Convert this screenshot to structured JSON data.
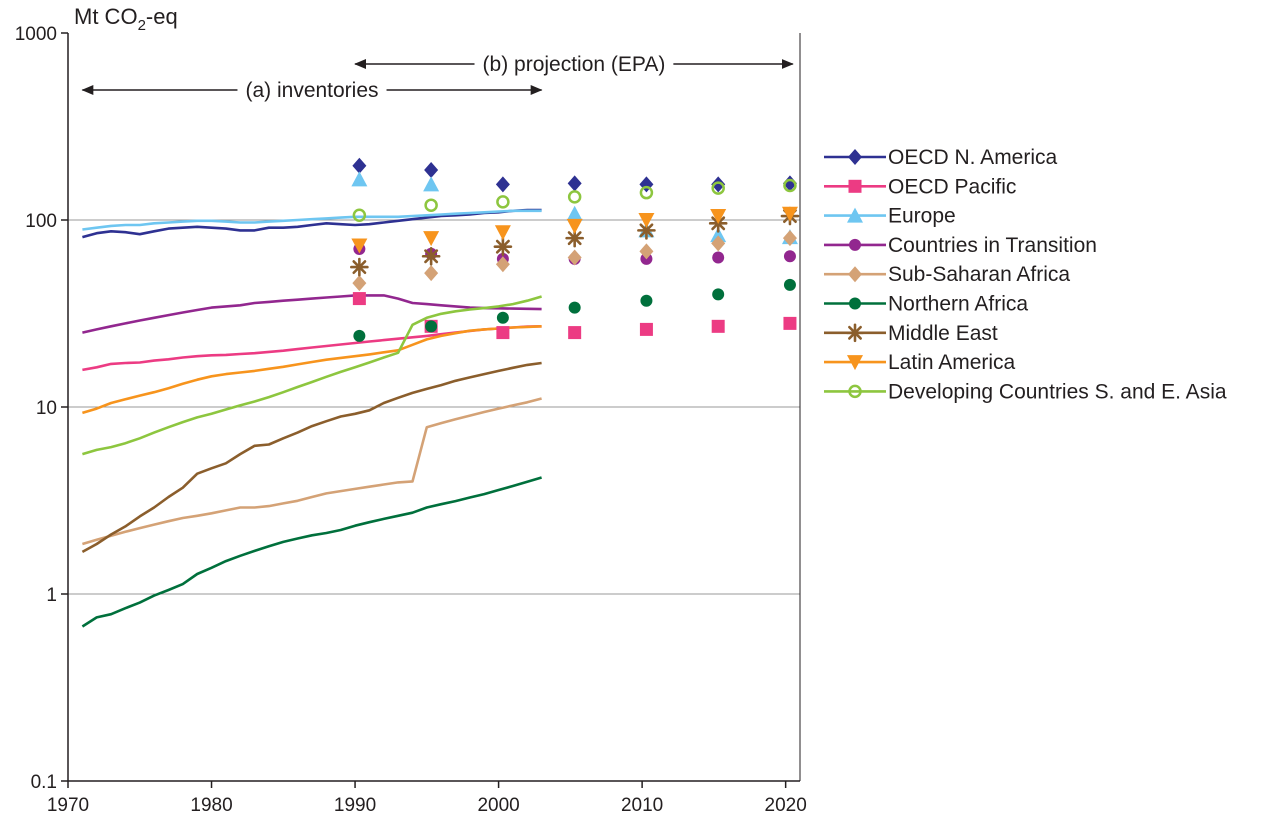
{
  "chart_data": {
    "type": "line",
    "ylabel": "Mt CO2-eq",
    "ylabel_parts": {
      "main": "Mt CO",
      "sub": "2",
      "suffix": "-eq"
    },
    "y_scale": "log",
    "xlim": [
      1970,
      2021
    ],
    "ylim": [
      0.1,
      1000
    ],
    "x_ticks": [
      1970,
      1980,
      1990,
      2000,
      2010,
      2020
    ],
    "y_ticks": [
      {
        "value": 0.1,
        "label": "0.1"
      },
      {
        "value": 1,
        "label": "1"
      },
      {
        "value": 10,
        "label": "10"
      },
      {
        "value": 100,
        "label": "100"
      },
      {
        "value": 1000,
        "label": "1000"
      }
    ],
    "grid": "horizontal",
    "legend_position": "right",
    "annotations": {
      "inventories": {
        "label": "(a) inventories",
        "x_from": 1971,
        "x_to": 2003
      },
      "projection": {
        "label": "(b) projection (EPA)",
        "x_from": 1990,
        "x_to": 2020.5
      }
    },
    "series": [
      {
        "name": "OECD N. America",
        "color": "#2e3192",
        "marker": "diamond",
        "inventory": {
          "x": [
            1971,
            1972,
            1973,
            1974,
            1975,
            1976,
            1977,
            1978,
            1979,
            1980,
            1981,
            1982,
            1983,
            1984,
            1985,
            1986,
            1987,
            1988,
            1989,
            1990,
            1991,
            1992,
            1993,
            1994,
            1995,
            1996,
            1997,
            1998,
            1999,
            2000,
            2001,
            2002,
            2003
          ],
          "y": [
            81,
            85,
            87,
            86,
            84,
            87,
            90,
            91,
            92,
            91,
            90,
            88,
            88,
            91,
            91,
            92,
            94,
            96,
            95,
            94,
            95,
            97,
            99,
            101,
            103,
            105,
            106,
            107,
            109,
            110,
            112,
            113,
            113
          ]
        },
        "projection": {
          "x": [
            1990,
            1995,
            2000,
            2005,
            2010,
            2015,
            2020
          ],
          "y": [
            195,
            185,
            155,
            157,
            155,
            155,
            157
          ]
        }
      },
      {
        "name": "OECD Pacific",
        "color": "#ec3b83",
        "marker": "square",
        "inventory": {
          "x": [
            1971,
            1972,
            1973,
            1974,
            1975,
            1976,
            1977,
            1978,
            1979,
            1980,
            1981,
            1982,
            1983,
            1984,
            1985,
            1986,
            1987,
            1988,
            1989,
            1990,
            1991,
            1992,
            1993,
            1994,
            1995,
            1996,
            1997,
            1998,
            1999,
            2000,
            2001,
            2002,
            2003
          ],
          "y": [
            15.8,
            16.3,
            17.0,
            17.2,
            17.3,
            17.7,
            18.0,
            18.4,
            18.7,
            18.9,
            19.0,
            19.2,
            19.4,
            19.7,
            20.0,
            20.4,
            20.8,
            21.2,
            21.6,
            22.0,
            22.4,
            22.8,
            23.2,
            23.6,
            24.0,
            24.5,
            25.0,
            25.5,
            26.0,
            26.3,
            26.6,
            26.9,
            27.0
          ]
        },
        "projection": {
          "x": [
            1990,
            1995,
            2000,
            2005,
            2010,
            2015,
            2020
          ],
          "y": [
            38,
            27,
            25,
            25,
            26,
            27,
            28
          ]
        }
      },
      {
        "name": "Europe",
        "color": "#6ec6f1",
        "marker": "triangle",
        "inventory": {
          "x": [
            1971,
            1972,
            1973,
            1974,
            1975,
            1976,
            1977,
            1978,
            1979,
            1980,
            1981,
            1982,
            1983,
            1984,
            1985,
            1986,
            1987,
            1988,
            1989,
            1990,
            1991,
            1992,
            1993,
            1994,
            1995,
            1996,
            1997,
            1998,
            1999,
            2000,
            2001,
            2002,
            2003
          ],
          "y": [
            89,
            91,
            93,
            94,
            94,
            96,
            97,
            98,
            99,
            99,
            98,
            97,
            97,
            98,
            99,
            100,
            101,
            102,
            103,
            104,
            104,
            104,
            104,
            105,
            106,
            107,
            108,
            109,
            110,
            111,
            112,
            112,
            112
          ]
        },
        "projection": {
          "x": [
            1990,
            1995,
            2000,
            2005,
            2010,
            2015,
            2020
          ],
          "y": [
            165,
            155,
            null,
            108,
            88,
            83,
            81
          ]
        }
      },
      {
        "name": "Countries in Transition",
        "color": "#92278f",
        "marker": "circle",
        "inventory": {
          "x": [
            1971,
            1972,
            1973,
            1974,
            1975,
            1976,
            1977,
            1978,
            1979,
            1980,
            1981,
            1982,
            1983,
            1984,
            1985,
            1986,
            1987,
            1988,
            1989,
            1990,
            1991,
            1992,
            1993,
            1994,
            1995,
            1996,
            1997,
            1998,
            1999,
            2000,
            2001,
            2002,
            2003
          ],
          "y": [
            25,
            26,
            27,
            28,
            29,
            30,
            31,
            32,
            33,
            34,
            34.5,
            35,
            36,
            36.5,
            37,
            37.5,
            38,
            38.5,
            39,
            39.5,
            39.5,
            39.5,
            38,
            36,
            35.5,
            35,
            34.5,
            34,
            33.8,
            33.7,
            33.6,
            33.5,
            33.4
          ]
        },
        "projection": {
          "x": [
            1990,
            1995,
            2000,
            2005,
            2010,
            2015,
            2020
          ],
          "y": [
            70,
            66,
            62,
            62,
            62,
            63,
            64
          ]
        }
      },
      {
        "name": "Sub-Saharan Africa",
        "color": "#d4a276",
        "marker": "diamond",
        "inventory": {
          "x": [
            1971,
            1972,
            1973,
            1974,
            1975,
            1976,
            1977,
            1978,
            1979,
            1980,
            1981,
            1982,
            1983,
            1984,
            1985,
            1986,
            1987,
            1988,
            1989,
            1990,
            1991,
            1992,
            1993,
            1994,
            1995,
            1996,
            1997,
            1998,
            1999,
            2000,
            2001,
            2002,
            2003
          ],
          "y": [
            1.85,
            1.95,
            2.05,
            2.15,
            2.25,
            2.35,
            2.45,
            2.55,
            2.62,
            2.7,
            2.8,
            2.9,
            2.9,
            2.95,
            3.05,
            3.15,
            3.3,
            3.45,
            3.55,
            3.65,
            3.75,
            3.85,
            3.95,
            4.0,
            7.8,
            8.2,
            8.6,
            9.0,
            9.4,
            9.8,
            10.2,
            10.6,
            11.1
          ]
        },
        "projection": {
          "x": [
            1990,
            1995,
            2000,
            2005,
            2010,
            2015,
            2020
          ],
          "y": [
            46,
            52,
            58,
            63,
            68,
            75,
            80
          ]
        }
      },
      {
        "name": "Northern Africa",
        "color": "#00703c",
        "marker": "circle",
        "inventory": {
          "x": [
            1971,
            1972,
            1973,
            1974,
            1975,
            1976,
            1977,
            1978,
            1979,
            1980,
            1981,
            1982,
            1983,
            1984,
            1985,
            1986,
            1987,
            1988,
            1989,
            1990,
            1991,
            1992,
            1993,
            1994,
            1995,
            1996,
            1997,
            1998,
            1999,
            2000,
            2001,
            2002,
            2003
          ],
          "y": [
            0.67,
            0.75,
            0.78,
            0.84,
            0.9,
            0.98,
            1.05,
            1.13,
            1.28,
            1.38,
            1.5,
            1.6,
            1.7,
            1.8,
            1.9,
            1.98,
            2.06,
            2.12,
            2.2,
            2.32,
            2.42,
            2.52,
            2.62,
            2.72,
            2.9,
            3.02,
            3.14,
            3.28,
            3.42,
            3.6,
            3.78,
            3.98,
            4.2
          ]
        },
        "projection": {
          "x": [
            1990,
            1995,
            2000,
            2005,
            2010,
            2015,
            2020
          ],
          "y": [
            24,
            27,
            30,
            34,
            37,
            40,
            45
          ]
        }
      },
      {
        "name": "Middle East",
        "color": "#8b5e2c",
        "marker": "asterisk",
        "inventory": {
          "x": [
            1971,
            1972,
            1973,
            1974,
            1975,
            1976,
            1977,
            1978,
            1979,
            1980,
            1981,
            1982,
            1983,
            1984,
            1985,
            1986,
            1987,
            1988,
            1989,
            1990,
            1991,
            1992,
            1993,
            1994,
            1995,
            1996,
            1997,
            1998,
            1999,
            2000,
            2001,
            2002,
            2003
          ],
          "y": [
            1.68,
            1.85,
            2.08,
            2.3,
            2.6,
            2.9,
            3.3,
            3.7,
            4.4,
            4.7,
            5.0,
            5.6,
            6.2,
            6.3,
            6.8,
            7.3,
            7.9,
            8.4,
            8.9,
            9.2,
            9.6,
            10.5,
            11.2,
            11.9,
            12.5,
            13.1,
            13.8,
            14.4,
            15.0,
            15.6,
            16.2,
            16.8,
            17.2
          ]
        },
        "projection": {
          "x": [
            1990,
            1995,
            2000,
            2005,
            2010,
            2015,
            2020
          ],
          "y": [
            56,
            64,
            72,
            80,
            88,
            96,
            105
          ]
        }
      },
      {
        "name": "Latin America",
        "color": "#f7941d",
        "marker": "triangle-down",
        "inventory": {
          "x": [
            1971,
            1972,
            1973,
            1974,
            1975,
            1976,
            1977,
            1978,
            1979,
            1980,
            1981,
            1982,
            1983,
            1984,
            1985,
            1986,
            1987,
            1988,
            1989,
            1990,
            1991,
            1992,
            1993,
            1994,
            1995,
            1996,
            1997,
            1998,
            1999,
            2000,
            2001,
            2002,
            2003
          ],
          "y": [
            9.3,
            9.8,
            10.5,
            11.0,
            11.5,
            12.0,
            12.6,
            13.3,
            14.0,
            14.6,
            15.0,
            15.3,
            15.6,
            16.0,
            16.4,
            16.9,
            17.4,
            17.9,
            18.3,
            18.7,
            19.1,
            19.6,
            20.1,
            21.5,
            23.0,
            24.0,
            24.8,
            25.6,
            26.0,
            26.3,
            26.6,
            26.8,
            27.0
          ]
        },
        "projection": {
          "x": [
            1990,
            1995,
            2000,
            2005,
            2010,
            2015,
            2020
          ],
          "y": [
            73,
            80,
            86,
            93,
            100,
            105,
            108
          ]
        }
      },
      {
        "name": "Developing Countries S. and E. Asia",
        "color": "#8dc63f",
        "marker": "circle-open",
        "inventory": {
          "x": [
            1971,
            1972,
            1973,
            1974,
            1975,
            1976,
            1977,
            1978,
            1979,
            1980,
            1981,
            1982,
            1983,
            1984,
            1985,
            1986,
            1987,
            1988,
            1989,
            1990,
            1991,
            1992,
            1993,
            1994,
            1995,
            1996,
            1997,
            1998,
            1999,
            2000,
            2001,
            2002,
            2003
          ],
          "y": [
            5.6,
            5.9,
            6.1,
            6.4,
            6.8,
            7.3,
            7.8,
            8.3,
            8.8,
            9.2,
            9.7,
            10.2,
            10.7,
            11.3,
            12.0,
            12.8,
            13.6,
            14.5,
            15.4,
            16.3,
            17.3,
            18.4,
            19.5,
            27.5,
            30.0,
            31.5,
            32.5,
            33.2,
            33.8,
            34.5,
            35.5,
            37.0,
            39.0
          ]
        },
        "projection": {
          "x": [
            1990,
            1995,
            2000,
            2005,
            2010,
            2015,
            2020
          ],
          "y": [
            106,
            120,
            125,
            133,
            140,
            148,
            153
          ]
        }
      }
    ]
  }
}
